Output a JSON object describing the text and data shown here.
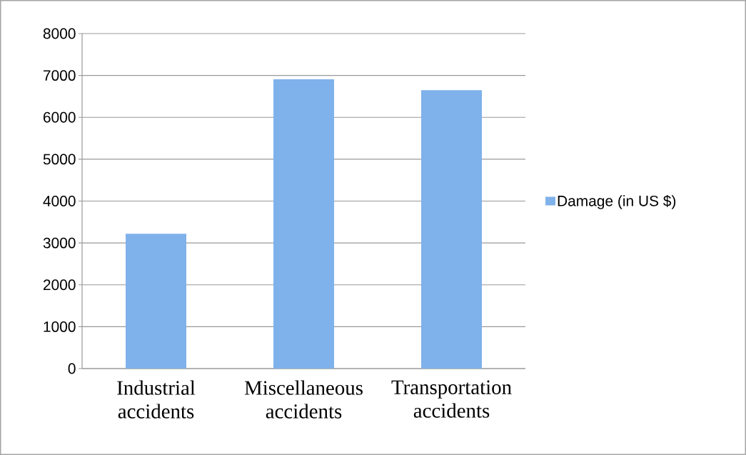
{
  "chart_data": {
    "type": "bar",
    "categories": [
      "Industrial accidents",
      "Miscellaneous accidents",
      "Transportation accidents"
    ],
    "series": [
      {
        "name": "Damage (in US $)",
        "color": "#7fb2ea",
        "values": [
          3220,
          6910,
          6650
        ]
      }
    ],
    "ylim": [
      0,
      8000
    ],
    "yticks": [
      0,
      1000,
      2000,
      3000,
      4000,
      5000,
      6000,
      7000,
      8000
    ],
    "grid": "y",
    "legend": "right"
  }
}
